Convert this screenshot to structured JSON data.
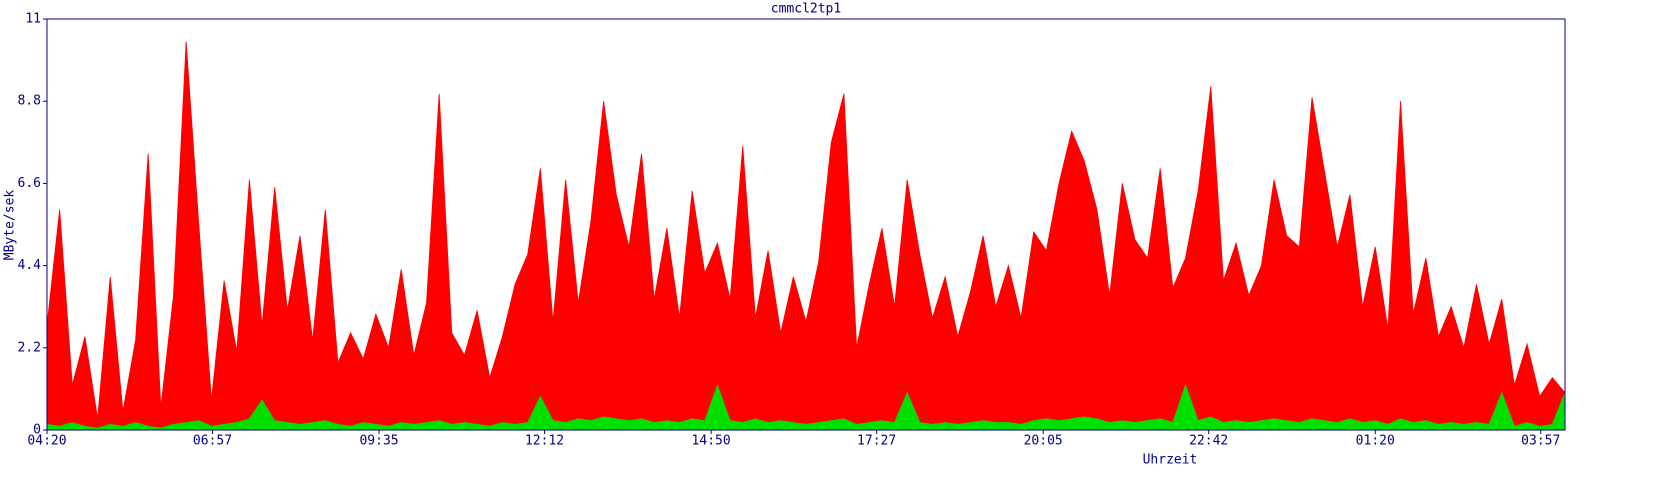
{
  "chart_data": {
    "type": "area",
    "title": "cmmcl2tp1",
    "x_label": "Uhrzeit",
    "y_label": "MByte/sek",
    "x": [
      0,
      12,
      24,
      36,
      48,
      60,
      72,
      84,
      96,
      108,
      120,
      132,
      144,
      156,
      168,
      180,
      192,
      204,
      216,
      228,
      240,
      252,
      264,
      276,
      288,
      300,
      312,
      324,
      336,
      348,
      360,
      372,
      384,
      396,
      408,
      420,
      432,
      444,
      456,
      468,
      480,
      492,
      504,
      516,
      528,
      540,
      552,
      564,
      576,
      588,
      600,
      612,
      624,
      636,
      648,
      660,
      672,
      684,
      696,
      708,
      720,
      732,
      744,
      756,
      768,
      780,
      792,
      804,
      816,
      828,
      840,
      852,
      864,
      876,
      888,
      900,
      912,
      924,
      936,
      948,
      960,
      972,
      984,
      996,
      1008,
      1020,
      1032,
      1044,
      1056,
      1068,
      1080,
      1092,
      1104,
      1116,
      1128,
      1140,
      1152,
      1164,
      1176,
      1188,
      1200,
      1212,
      1224,
      1236,
      1248,
      1260,
      1272,
      1284,
      1296,
      1308,
      1320,
      1332,
      1344,
      1356,
      1368,
      1380,
      1392,
      1404,
      1416,
      1428,
      1440
    ],
    "series": [
      {
        "color": "#ff0000",
        "values": [
          2.8,
          5.9,
          1.2,
          2.5,
          0.3,
          4.1,
          0.5,
          2.4,
          7.4,
          0.6,
          3.6,
          10.4,
          5.5,
          0.8,
          4.0,
          2.1,
          6.7,
          2.8,
          6.5,
          3.2,
          5.2,
          2.4,
          5.9,
          1.8,
          2.6,
          1.9,
          3.1,
          2.2,
          4.3,
          2.0,
          3.4,
          9.0,
          2.6,
          2.0,
          3.2,
          1.4,
          2.5,
          3.9,
          4.7,
          7.0,
          2.9,
          6.7,
          3.4,
          5.6,
          8.8,
          6.3,
          4.9,
          7.4,
          3.5,
          5.4,
          3.0,
          6.4,
          4.2,
          5.0,
          3.5,
          7.6,
          3.0,
          4.8,
          2.6,
          4.1,
          2.9,
          4.5,
          7.7,
          9.0,
          2.2,
          3.9,
          5.4,
          3.3,
          6.7,
          4.7,
          3.0,
          4.1,
          2.5,
          3.7,
          5.2,
          3.3,
          4.4,
          3.0,
          5.3,
          4.8,
          6.6,
          8.0,
          7.2,
          5.9,
          3.6,
          6.6,
          5.1,
          4.6,
          7.0,
          3.8,
          4.6,
          6.4,
          9.2,
          4.0,
          5.0,
          3.6,
          4.4,
          6.7,
          5.2,
          4.9,
          8.9,
          6.9,
          4.9,
          6.3,
          3.3,
          4.9,
          2.7,
          8.8,
          3.1,
          4.6,
          2.5,
          3.3,
          2.2,
          3.9,
          2.3,
          3.5,
          1.2,
          2.3,
          0.9,
          1.4,
          1.0
        ]
      },
      {
        "color": "#00e000",
        "values": [
          0.15,
          0.1,
          0.2,
          0.1,
          0.05,
          0.15,
          0.1,
          0.2,
          0.1,
          0.05,
          0.15,
          0.2,
          0.25,
          0.1,
          0.15,
          0.2,
          0.3,
          0.8,
          0.25,
          0.2,
          0.15,
          0.2,
          0.25,
          0.15,
          0.1,
          0.2,
          0.15,
          0.1,
          0.2,
          0.15,
          0.2,
          0.25,
          0.15,
          0.2,
          0.15,
          0.1,
          0.2,
          0.15,
          0.2,
          0.9,
          0.25,
          0.2,
          0.3,
          0.25,
          0.35,
          0.3,
          0.25,
          0.3,
          0.2,
          0.25,
          0.2,
          0.3,
          0.25,
          1.2,
          0.25,
          0.2,
          0.3,
          0.2,
          0.25,
          0.2,
          0.15,
          0.2,
          0.25,
          0.3,
          0.15,
          0.2,
          0.25,
          0.2,
          1.0,
          0.2,
          0.15,
          0.2,
          0.15,
          0.2,
          0.25,
          0.2,
          0.2,
          0.15,
          0.25,
          0.3,
          0.25,
          0.3,
          0.35,
          0.3,
          0.2,
          0.25,
          0.2,
          0.25,
          0.3,
          0.2,
          1.2,
          0.25,
          0.35,
          0.2,
          0.25,
          0.2,
          0.25,
          0.3,
          0.25,
          0.2,
          0.3,
          0.25,
          0.2,
          0.3,
          0.2,
          0.25,
          0.15,
          0.3,
          0.2,
          0.25,
          0.15,
          0.2,
          0.15,
          0.2,
          0.15,
          1.0,
          0.1,
          0.2,
          0.1,
          0.15,
          1.0
        ]
      }
    ],
    "xlim": [
      0,
      1440
    ],
    "ylim": [
      0,
      11
    ],
    "xticks": [
      {
        "value": 0,
        "label": "04:20"
      },
      {
        "value": 157,
        "label": "06:57"
      },
      {
        "value": 315,
        "label": "09:35"
      },
      {
        "value": 472,
        "label": "12:12"
      },
      {
        "value": 630,
        "label": "14:50"
      },
      {
        "value": 787,
        "label": "17:27"
      },
      {
        "value": 945,
        "label": "20:05"
      },
      {
        "value": 1102,
        "label": "22:42"
      },
      {
        "value": 1260,
        "label": "01:20"
      },
      {
        "value": 1417,
        "label": "03:57"
      }
    ],
    "yticks": [
      0,
      2.2,
      4.4,
      6.6,
      8.8,
      11
    ]
  }
}
